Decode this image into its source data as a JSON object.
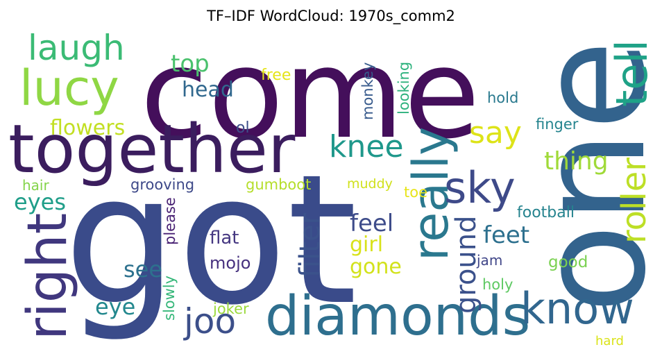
{
  "title": "TF–IDF WordCloud: 1970s_comm2",
  "words": [
    {
      "text": "come",
      "color": "#440f5b"
    },
    {
      "text": "got",
      "color": "#3a4b8a"
    },
    {
      "text": "one",
      "color": "#33638d"
    },
    {
      "text": "together",
      "color": "#3b1d5e"
    },
    {
      "text": "diamonds",
      "color": "#2e6f8e"
    },
    {
      "text": "lucy",
      "color": "#8fd744"
    },
    {
      "text": "laugh",
      "color": "#3bbb75"
    },
    {
      "text": "really",
      "color": "#2a788e"
    },
    {
      "text": "right",
      "color": "#40377e"
    },
    {
      "text": "know",
      "color": "#31668e"
    },
    {
      "text": "sky",
      "color": "#3e4a89"
    },
    {
      "text": "tell",
      "color": "#1fa287"
    },
    {
      "text": "roller",
      "color": "#bddf26"
    },
    {
      "text": "knee",
      "color": "#1f988b"
    },
    {
      "text": "say",
      "color": "#dde318"
    },
    {
      "text": "joo",
      "color": "#3c4f8a"
    },
    {
      "text": "top",
      "color": "#4ac16d"
    },
    {
      "text": "thing",
      "color": "#a0da39"
    },
    {
      "text": "head",
      "color": "#31688e"
    },
    {
      "text": "flowers",
      "color": "#c2df23"
    },
    {
      "text": "eyes",
      "color": "#1f9e89"
    },
    {
      "text": "ground",
      "color": "#3b518b"
    },
    {
      "text": "feel",
      "color": "#3e4c8a"
    },
    {
      "text": "feet",
      "color": "#2d708e"
    },
    {
      "text": "girl",
      "color": "#d8e219"
    },
    {
      "text": "gone",
      "color": "#d2e21b"
    },
    {
      "text": "see",
      "color": "#2d718e"
    },
    {
      "text": "eye",
      "color": "#23888e"
    },
    {
      "text": "filter",
      "color": "#3b528b"
    },
    {
      "text": "flat",
      "color": "#453781"
    },
    {
      "text": "mojo",
      "color": "#46307e"
    },
    {
      "text": "please",
      "color": "#482173"
    },
    {
      "text": "slowly",
      "color": "#35b779"
    },
    {
      "text": "joker",
      "color": "#9bd93c"
    },
    {
      "text": "free",
      "color": "#e5e419"
    },
    {
      "text": "monkey",
      "color": "#375a8c"
    },
    {
      "text": "looking",
      "color": "#2db27d"
    },
    {
      "text": "hold",
      "color": "#29798e"
    },
    {
      "text": "finger",
      "color": "#25848e"
    },
    {
      "text": "ol",
      "color": "#3d4e8a"
    },
    {
      "text": "grooving",
      "color": "#3e4989"
    },
    {
      "text": "gumboot",
      "color": "#b5de2b"
    },
    {
      "text": "muddy",
      "color": "#d0e11c"
    },
    {
      "text": "hair",
      "color": "#84d44b"
    },
    {
      "text": "toe",
      "color": "#e7e419"
    },
    {
      "text": "football",
      "color": "#25838e"
    },
    {
      "text": "jam",
      "color": "#404688"
    },
    {
      "text": "good",
      "color": "#7ad151"
    },
    {
      "text": "holy",
      "color": "#5ec962"
    },
    {
      "text": "hard",
      "color": "#dae319"
    }
  ]
}
